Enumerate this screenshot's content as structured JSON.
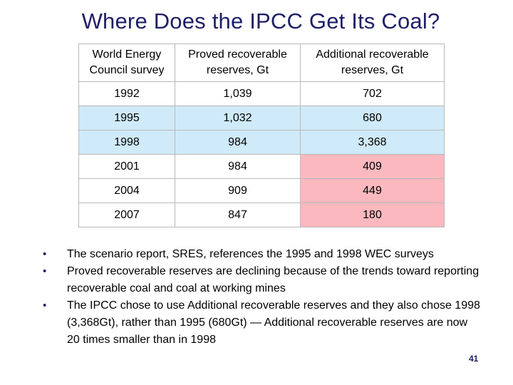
{
  "slide": {
    "title": "Where Does the IPCC Get Its Coal?",
    "page_number": "41"
  },
  "table": {
    "headers": [
      [
        "World Energy",
        "Council survey"
      ],
      [
        "Proved recoverable",
        "reserves, Gt"
      ],
      [
        "Additional recoverable",
        "reserves, Gt"
      ]
    ],
    "rows": [
      {
        "year": "1992",
        "proved": "1,039",
        "additional": "702"
      },
      {
        "year": "1995",
        "proved": "1,032",
        "additional": "680"
      },
      {
        "year": "1998",
        "proved": "984",
        "additional": "3,368"
      },
      {
        "year": "2001",
        "proved": "984",
        "additional": "409"
      },
      {
        "year": "2004",
        "proved": "909",
        "additional": "449"
      },
      {
        "year": "2007",
        "proved": "847",
        "additional": "180"
      }
    ],
    "colors": {
      "highlight_blue": "#cfeaf8",
      "highlight_red": "#fbb8bf"
    }
  },
  "bullets": [
    "The scenario report, SRES, references the 1995 and 1998 WEC surveys",
    "Proved recoverable reserves are declining because of the trends toward reporting recoverable coal and coal at working mines",
    "The IPCC chose to use Additional recoverable reserves and they also chose 1998 (3,368Gt), rather than 1995 (680Gt) — Additional recoverable reserves are now 20 times smaller than in 1998"
  ]
}
